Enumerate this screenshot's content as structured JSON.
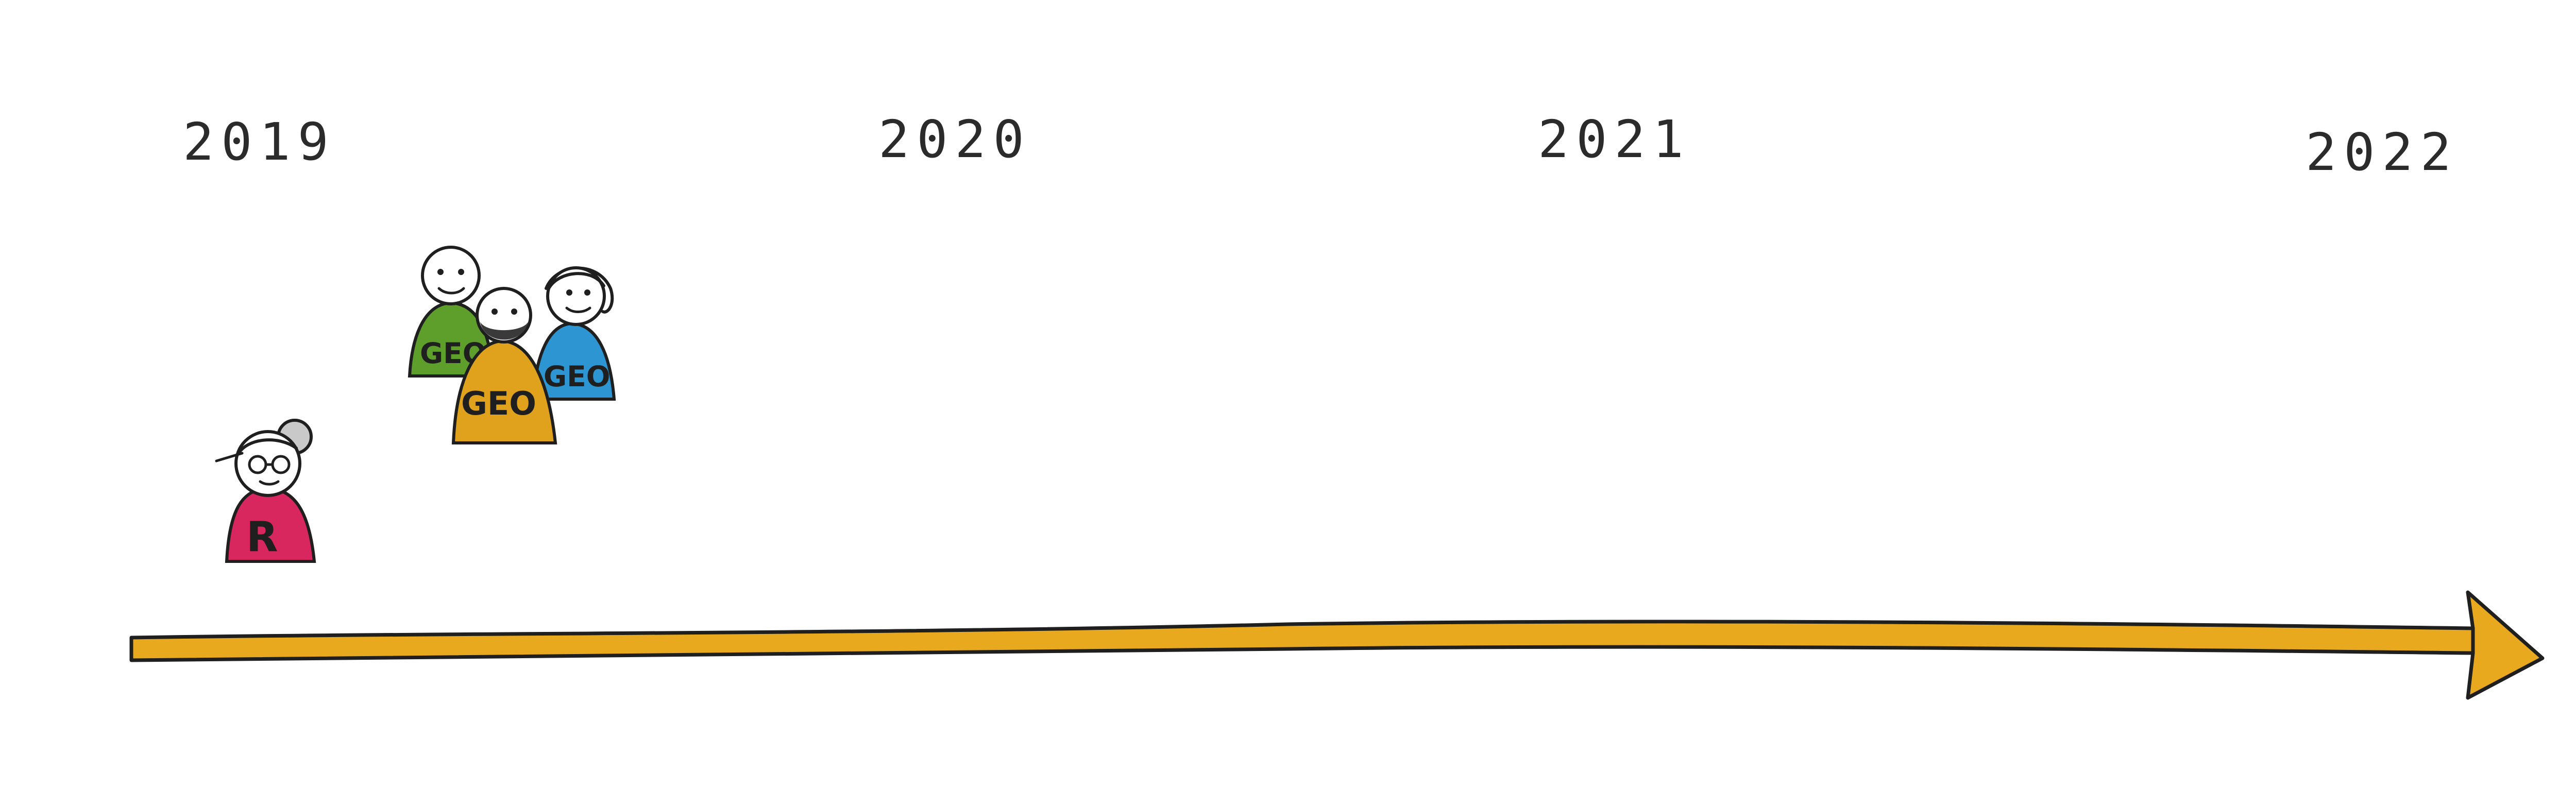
{
  "timeline": {
    "years": [
      "2019",
      "2020",
      "2021",
      "2022"
    ],
    "arrow_color": "#E8A91E"
  },
  "people": [
    {
      "shirt_label": "R",
      "shirt_color": "#D8265E"
    },
    {
      "shirt_label": "GEO",
      "shirt_color": "#5E9E2B"
    },
    {
      "shirt_label": "GEO",
      "shirt_color": "#E0A21C"
    },
    {
      "shirt_label": "GEO",
      "shirt_color": "#2D95D1"
    }
  ]
}
